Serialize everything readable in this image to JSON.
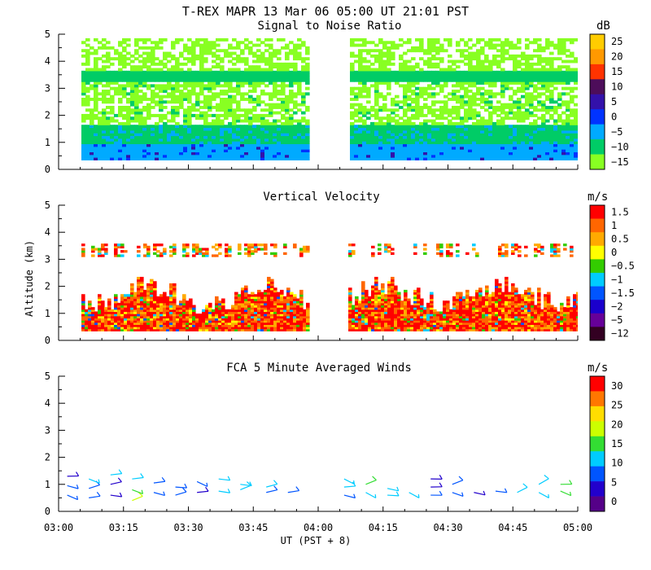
{
  "header": {
    "title": "T-REX   MAPR 13 Mar 06   05:00 UT   21:01   PST"
  },
  "chart_data": [
    {
      "type": "heatmap",
      "title": "Signal to Noise Ratio",
      "units": "dB",
      "ylabel": "",
      "ylim": [
        0,
        5
      ],
      "yticks": [
        "0",
        "1",
        "2",
        "3",
        "4",
        "5"
      ],
      "colorbar_labels": [
        "25",
        "20",
        "15",
        "10",
        "5",
        "0",
        "−5",
        "−10",
        "−15"
      ],
      "colorbar_colors": [
        "#ffcc00",
        "#ff9900",
        "#ff3300",
        "#4d0d5a",
        "#3311aa",
        "#0033ff",
        "#00aaff",
        "#00cc66",
        "#88ff22"
      ],
      "data_gap": [
        "03:58",
        "04:05"
      ],
      "layers": [
        {
          "z_range": [
            0.35,
            0.9
          ],
          "snr_db": -5
        },
        {
          "z_range": [
            0.9,
            1.6
          ],
          "snr_db": -10
        },
        {
          "z_range": [
            1.6,
            3.2
          ],
          "snr_db": -15
        },
        {
          "z_range": [
            3.2,
            3.6
          ],
          "snr_db": -10
        },
        {
          "z_range": [
            3.6,
            4.8
          ],
          "snr_db": -15
        }
      ]
    },
    {
      "type": "heatmap",
      "title": "Vertical Velocity",
      "units": "m/s",
      "ylabel": "Altitude (km)",
      "ylim": [
        0,
        5
      ],
      "yticks": [
        "0",
        "1",
        "2",
        "3",
        "4",
        "5"
      ],
      "colorbar_labels": [
        "1.5",
        "1",
        "0.5",
        "0",
        "−0.5",
        "−1",
        "−1.5",
        "−2",
        "−5",
        "−12"
      ],
      "colorbar_colors": [
        "#ff0000",
        "#ff6600",
        "#ffaa00",
        "#ffff00",
        "#33cc00",
        "#00ccff",
        "#0055ff",
        "#1a00cc",
        "#660099",
        "#330022"
      ],
      "data_gap": [
        "03:58",
        "04:05"
      ]
    },
    {
      "type": "scatter",
      "title": "FCA 5 Minute Averaged Winds",
      "units": "m/s",
      "ylim": [
        0,
        5
      ],
      "yticks": [
        "0",
        "1",
        "2",
        "3",
        "4",
        "5"
      ],
      "colorbar_labels": [
        "30",
        "25",
        "20",
        "15",
        "10",
        "5",
        "0"
      ],
      "colorbar_colors": [
        "#ff0000",
        "#ff7700",
        "#ffdd00",
        "#ccff00",
        "#33dd33",
        "#00ccff",
        "#0055ff",
        "#2200cc",
        "#550088"
      ],
      "xlabel": "UT  (PST + 8)",
      "xticks": [
        "03:00",
        "03:15",
        "03:30",
        "03:45",
        "04:00",
        "04:15",
        "04:30",
        "04:45",
        "05:00"
      ],
      "wind_barbs": [
        {
          "time": "03:02",
          "alt": 0.6,
          "speed": 8
        },
        {
          "time": "03:02",
          "alt": 0.95,
          "speed": 6
        },
        {
          "time": "03:02",
          "alt": 1.3,
          "speed": 4
        },
        {
          "time": "03:07",
          "alt": 0.5,
          "speed": 7
        },
        {
          "time": "03:07",
          "alt": 0.85,
          "speed": 9
        },
        {
          "time": "03:07",
          "alt": 1.2,
          "speed": 10
        },
        {
          "time": "03:12",
          "alt": 0.6,
          "speed": 5
        },
        {
          "time": "03:12",
          "alt": 1.0,
          "speed": 3
        },
        {
          "time": "03:12",
          "alt": 1.35,
          "speed": 11
        },
        {
          "time": "03:17",
          "alt": 0.4,
          "speed": 20
        },
        {
          "time": "03:17",
          "alt": 0.8,
          "speed": 14
        },
        {
          "time": "03:17",
          "alt": 1.2,
          "speed": 12
        },
        {
          "time": "03:22",
          "alt": 0.7,
          "speed": 9
        },
        {
          "time": "03:22",
          "alt": 1.05,
          "speed": 7
        },
        {
          "time": "03:27",
          "alt": 0.6,
          "speed": 8
        },
        {
          "time": "03:27",
          "alt": 0.9,
          "speed": 6
        },
        {
          "time": "03:32",
          "alt": 0.7,
          "speed": 5
        },
        {
          "time": "03:32",
          "alt": 1.1,
          "speed": 9
        },
        {
          "time": "03:37",
          "alt": 0.75,
          "speed": 12
        },
        {
          "time": "03:37",
          "alt": 1.2,
          "speed": 11
        },
        {
          "time": "03:42",
          "alt": 0.8,
          "speed": 10
        },
        {
          "time": "03:42",
          "alt": 1.0,
          "speed": 12
        },
        {
          "time": "03:48",
          "alt": 0.7,
          "speed": 9
        },
        {
          "time": "03:48",
          "alt": 0.9,
          "speed": 10
        },
        {
          "time": "03:53",
          "alt": 0.7,
          "speed": 8
        },
        {
          "time": "04:06",
          "alt": 0.6,
          "speed": 9
        },
        {
          "time": "04:06",
          "alt": 0.9,
          "speed": 10
        },
        {
          "time": "04:06",
          "alt": 1.2,
          "speed": 11
        },
        {
          "time": "04:11",
          "alt": 0.7,
          "speed": 12
        },
        {
          "time": "04:11",
          "alt": 1.0,
          "speed": 16
        },
        {
          "time": "04:16",
          "alt": 0.6,
          "speed": 10
        },
        {
          "time": "04:16",
          "alt": 0.85,
          "speed": 12
        },
        {
          "time": "04:21",
          "alt": 0.7,
          "speed": 11
        },
        {
          "time": "04:26",
          "alt": 0.6,
          "speed": 8
        },
        {
          "time": "04:26",
          "alt": 0.9,
          "speed": 5
        },
        {
          "time": "04:26",
          "alt": 1.2,
          "speed": 3
        },
        {
          "time": "04:31",
          "alt": 0.7,
          "speed": 9
        },
        {
          "time": "04:31",
          "alt": 1.0,
          "speed": 6
        },
        {
          "time": "04:36",
          "alt": 0.7,
          "speed": 4
        },
        {
          "time": "04:41",
          "alt": 0.75,
          "speed": 9
        },
        {
          "time": "04:46",
          "alt": 0.7,
          "speed": 10
        },
        {
          "time": "04:51",
          "alt": 0.7,
          "speed": 11
        },
        {
          "time": "04:51",
          "alt": 1.0,
          "speed": 13
        },
        {
          "time": "04:56",
          "alt": 0.75,
          "speed": 14
        },
        {
          "time": "04:56",
          "alt": 1.0,
          "speed": 16
        }
      ]
    }
  ]
}
